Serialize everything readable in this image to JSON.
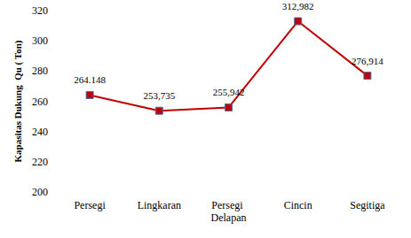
{
  "chart_data": {
    "type": "line",
    "y_label": "Kapasitas Dukung  Qu ( Ton)",
    "categories": [
      "Persegi",
      "Lingkaran",
      "Persegi Delapan",
      "Cincin",
      "Segitiga"
    ],
    "values": [
      264.148,
      253.735,
      255.942,
      312.982,
      276.914
    ],
    "value_labels": [
      "264.148",
      "253,735",
      "255,942",
      "312,982",
      "276,914"
    ],
    "color": "#c00000",
    "marker": "square",
    "ylim": [
      200,
      320
    ],
    "yticks": [
      200,
      220,
      240,
      260,
      280,
      300,
      320
    ],
    "grid": false,
    "data_labels": true
  }
}
